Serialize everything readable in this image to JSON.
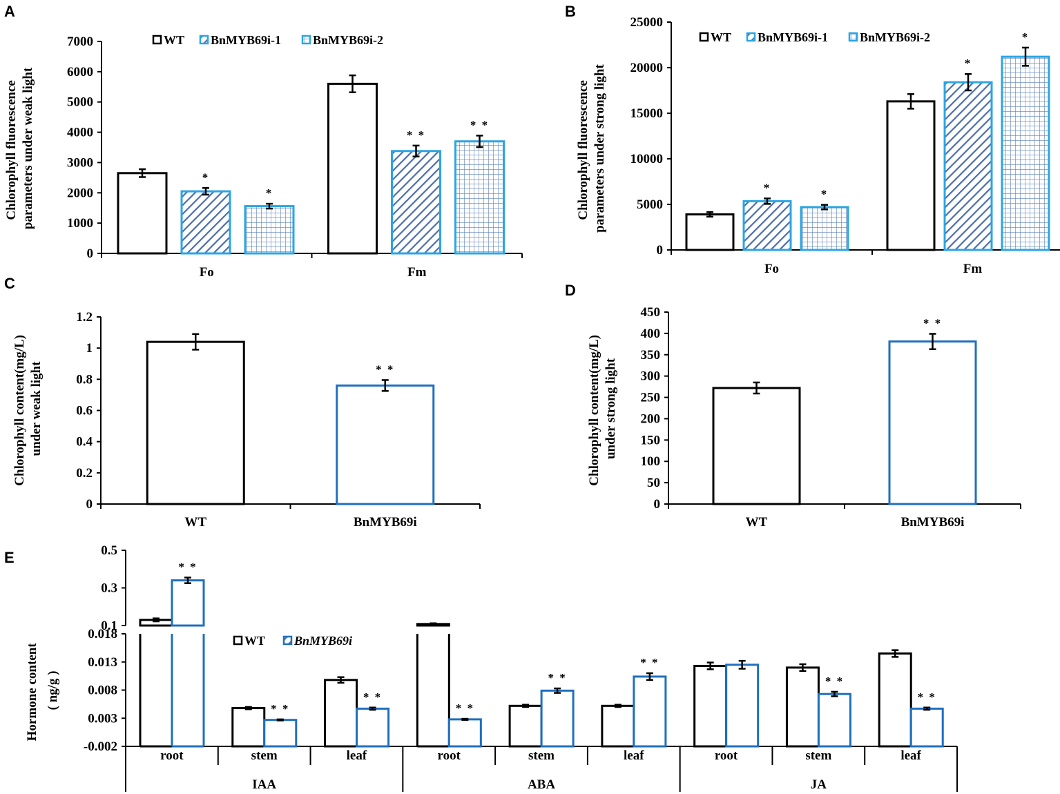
{
  "colors": {
    "wt": "#000000",
    "blue": "#1f6fbf",
    "cyan": "#29a6e3",
    "hatch": "#4f6fa8",
    "grid": "#5b7fb8"
  },
  "chart_data": [
    {
      "panel": "A",
      "type": "bar",
      "categories": [
        "Fo",
        "Fm"
      ],
      "ylabel_lines": [
        "Chlorophyll fluorescence",
        "parameters under weak light"
      ],
      "ylim": [
        0,
        7000
      ],
      "yticks": [
        "0",
        "1000",
        "2000",
        "3000",
        "4000",
        "5000",
        "6000",
        "7000"
      ],
      "series": [
        {
          "name": "WT",
          "values": [
            2650,
            5600
          ],
          "errors": [
            130,
            280
          ],
          "sig": [
            "",
            ""
          ]
        },
        {
          "name": "BnMYB69i-1",
          "values": [
            2050,
            3380
          ],
          "errors": [
            110,
            180
          ],
          "sig": [
            "*",
            "* *"
          ]
        },
        {
          "name": "BnMYB69i-2",
          "values": [
            1560,
            3700
          ],
          "errors": [
            80,
            190
          ],
          "sig": [
            "*",
            "* *"
          ]
        }
      ]
    },
    {
      "panel": "B",
      "type": "bar",
      "categories": [
        "Fo",
        "Fm"
      ],
      "ylabel_lines": [
        "Chlorophyll  fluorescence",
        "parameters under strong light"
      ],
      "ylim": [
        0,
        25000
      ],
      "yticks": [
        "0",
        "5000",
        "10000",
        "15000",
        "20000",
        "25000"
      ],
      "series": [
        {
          "name": "WT",
          "values": [
            3900,
            16300
          ],
          "errors": [
            250,
            800
          ],
          "sig": [
            "",
            ""
          ]
        },
        {
          "name": "BnMYB69i-1",
          "values": [
            5350,
            18400
          ],
          "errors": [
            300,
            900
          ],
          "sig": [
            "*",
            "*"
          ]
        },
        {
          "name": "BnMYB69i-2",
          "values": [
            4700,
            21200
          ],
          "errors": [
            250,
            1000
          ],
          "sig": [
            "*",
            "*"
          ]
        }
      ]
    },
    {
      "panel": "C",
      "type": "bar",
      "categories": [
        "WT",
        "BnMYB69i"
      ],
      "ylabel_lines": [
        "Chlorophyll content(mg/L)",
        "under weak light"
      ],
      "ylim": [
        0,
        1.2
      ],
      "yticks": [
        "0",
        "0.2",
        "0.4",
        "0.6",
        "0.8",
        "1",
        "1.2"
      ],
      "values": [
        1.04,
        0.76
      ],
      "errors": [
        0.05,
        0.035
      ],
      "sig": [
        "",
        "* *"
      ]
    },
    {
      "panel": "D",
      "type": "bar",
      "categories": [
        "WT",
        "BnMYB69i"
      ],
      "ylabel_lines": [
        "Chlorophyll content(mg/L)",
        "under strong light"
      ],
      "ylim": [
        0,
        450
      ],
      "yticks": [
        "0",
        "50",
        "100",
        "150",
        "200",
        "250",
        "300",
        "350",
        "400",
        "450"
      ],
      "values": [
        272,
        381
      ],
      "errors": [
        13,
        18
      ],
      "sig": [
        "",
        "* *"
      ]
    },
    {
      "panel": "E",
      "type": "bar",
      "ylabel_lines": [
        "Hormone content",
        "( ng/g )"
      ],
      "groups": [
        "IAA",
        "ABA",
        "JA"
      ],
      "categories": [
        "root",
        "stem",
        "leaf",
        "root",
        "stem",
        "leaf",
        "root",
        "stem",
        "leaf"
      ],
      "ylim_lower": [
        -0.002,
        0.018
      ],
      "ylim_upper": [
        0.1,
        0.5
      ],
      "yticks_lower": [
        "-0.002",
        "0.003",
        "0.008",
        "0.013",
        "0.018"
      ],
      "yticks_upper": [
        "0.1",
        "0.3",
        "0.5"
      ],
      "series": [
        {
          "name": "WT",
          "values": [
            0.13,
            0.0048,
            0.0098,
            0.108,
            0.0052,
            0.0052,
            0.0123,
            0.012,
            0.0145
          ],
          "errors": [
            0.008,
            0.0002,
            0.0005,
            0.004,
            0.0002,
            0.0002,
            0.0006,
            0.0006,
            0.0006
          ],
          "sig": [
            "",
            "",
            "",
            "",
            "",
            "",
            "",
            "",
            ""
          ]
        },
        {
          "name": "BnMYB69i",
          "values": [
            0.34,
            0.0027,
            0.0047,
            0.0028,
            0.0079,
            0.0104,
            0.0125,
            0.0073,
            0.0047
          ],
          "errors": [
            0.015,
            0.0001,
            0.0002,
            0.0001,
            0.0004,
            0.0006,
            0.0007,
            0.0004,
            0.0002
          ],
          "sig": [
            "* *",
            "* *",
            "* *",
            "* *",
            "* *",
            "* *",
            "",
            "* *",
            "* *"
          ]
        }
      ]
    }
  ]
}
